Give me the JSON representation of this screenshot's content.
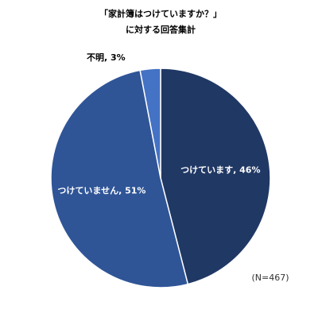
{
  "chart_data": {
    "type": "pie",
    "title": [
      "「家計簿はつけていますか？」",
      "に対する回答集計"
    ],
    "values": [
      46,
      51,
      3
    ],
    "value_labels": [
      "つけています, 46%",
      "つけていません, 51%",
      "不明, 3%"
    ],
    "colors": [
      "#203864",
      "#2f5597",
      "#4472c4"
    ],
    "note": "(N=467)"
  }
}
